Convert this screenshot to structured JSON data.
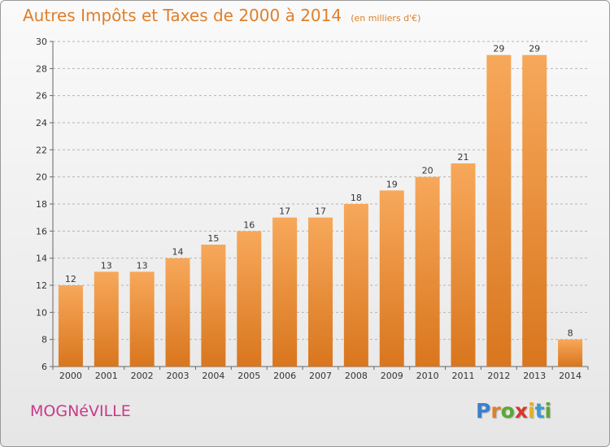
{
  "header": {
    "title": "Autres Impôts et Taxes de 2000 à 2014",
    "subtitle": "(en milliers d'€)"
  },
  "footer": {
    "city": "MOGNéVILLE",
    "logo_letters": [
      "P",
      "r",
      "o",
      "x",
      "i",
      "t",
      "i"
    ],
    "logo_colors": [
      "#3b7fd0",
      "#e07f2a",
      "#5aa832",
      "#d9362b",
      "#e8b020",
      "#3b9ad0",
      "#5aa832"
    ]
  },
  "colors": {
    "bar_top": "#f7a85a",
    "bar_bottom": "#d9761e",
    "grid": "#b5b5b5",
    "axis": "#666666"
  },
  "chart_data": {
    "type": "bar",
    "title": "Autres Impôts et Taxes de 2000 à 2014",
    "subtitle": "(en milliers d'€)",
    "xlabel": "",
    "ylabel": "",
    "categories": [
      "2000",
      "2001",
      "2002",
      "2003",
      "2004",
      "2005",
      "2006",
      "2007",
      "2008",
      "2009",
      "2010",
      "2011",
      "2012",
      "2013",
      "2014"
    ],
    "values": [
      12,
      13,
      13,
      14,
      15,
      16,
      17,
      17,
      18,
      19,
      20,
      21,
      29,
      29,
      8
    ],
    "ylim": [
      6,
      30
    ],
    "yticks": [
      6,
      8,
      10,
      12,
      14,
      16,
      18,
      20,
      22,
      24,
      26,
      28,
      30
    ],
    "grid": true,
    "legend": "none"
  }
}
